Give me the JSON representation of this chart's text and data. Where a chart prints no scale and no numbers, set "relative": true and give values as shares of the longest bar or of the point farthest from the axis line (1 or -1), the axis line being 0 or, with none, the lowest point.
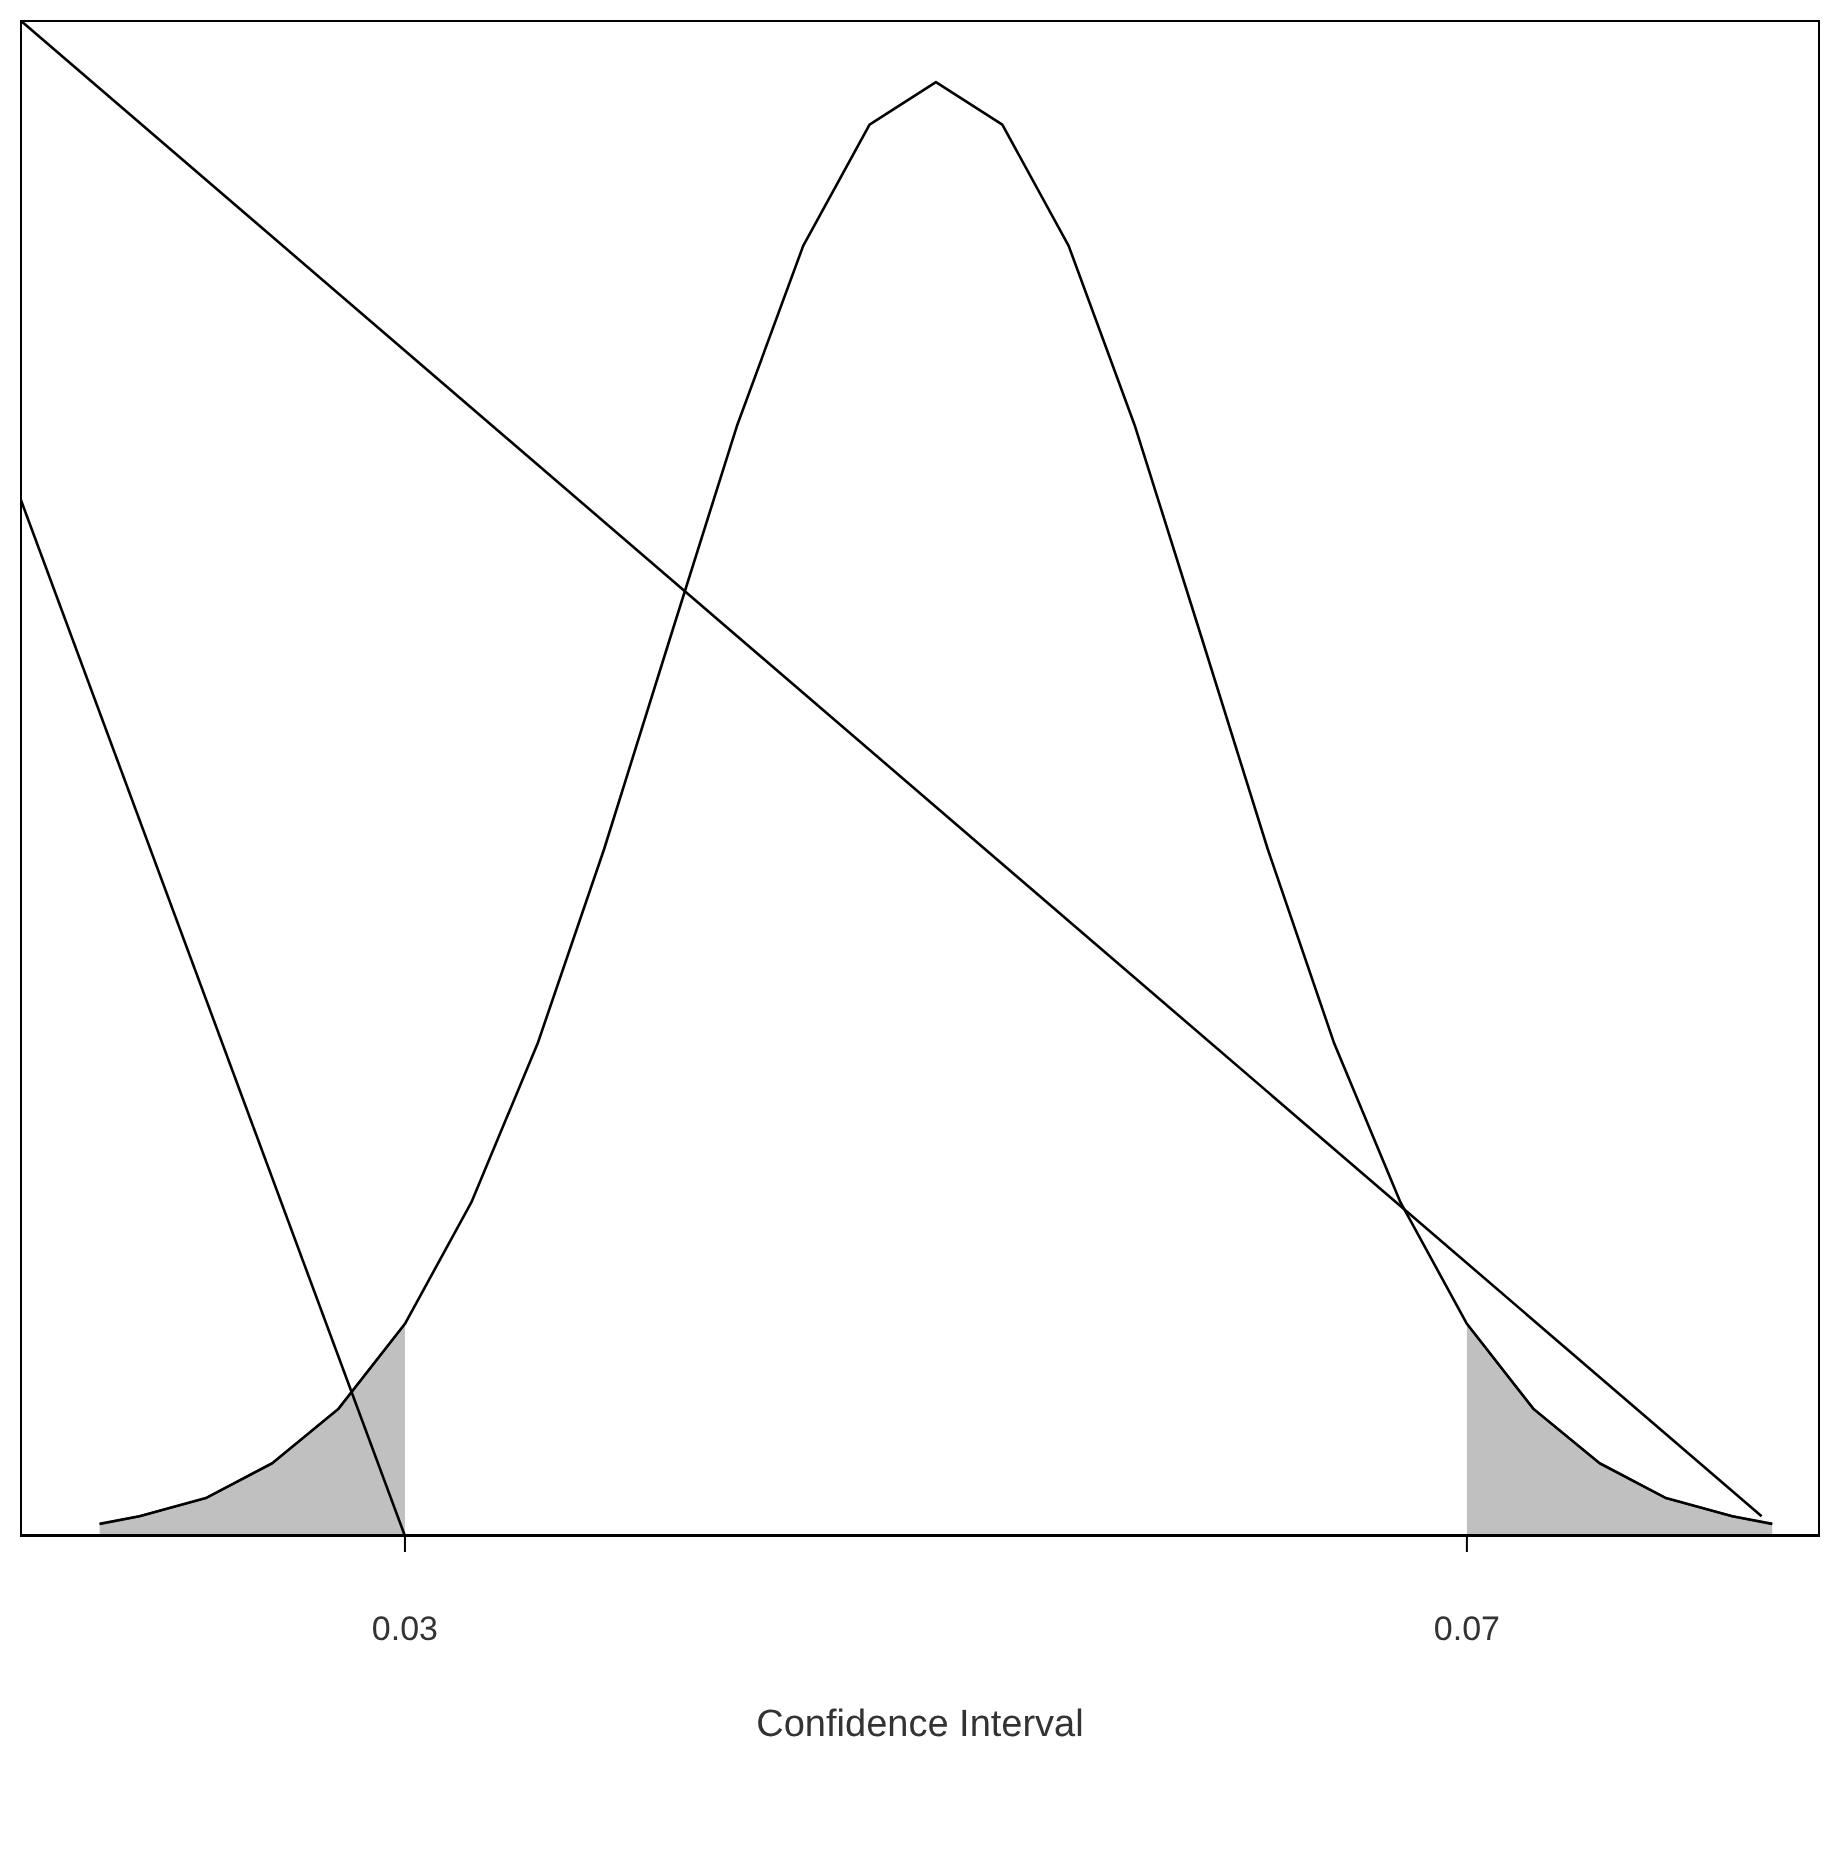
{
  "chart_data": {
    "type": "line",
    "relative": true,
    "xlabel": "Confidence Interval",
    "xlim": [
      0.0155,
      0.0833
    ],
    "xticks": [
      0.03,
      0.07
    ],
    "grid": false,
    "legend": false,
    "marker": "none",
    "line_style": "solid",
    "series": [
      {
        "type": "area",
        "color": "#c0c0c0",
        "x": [
          0.0185,
          0.02,
          0.0225,
          0.025,
          0.0275,
          0.03
        ],
        "values": [
          0.008,
          0.013,
          0.025,
          0.048,
          0.084,
          0.14
        ]
      },
      {
        "type": "area",
        "color": "#c0c0c0",
        "x": [
          0.07,
          0.0725,
          0.075,
          0.0775,
          0.08,
          0.0815
        ],
        "values": [
          0.14,
          0.084,
          0.048,
          0.025,
          0.013,
          0.008
        ]
      },
      {
        "color": "#000000",
        "x": [
          0.0185,
          0.02,
          0.0225,
          0.025,
          0.0275,
          0.03,
          0.0325,
          0.035,
          0.0375,
          0.04,
          0.0425,
          0.045,
          0.0475,
          0.05,
          0.0525,
          0.055,
          0.0575,
          0.06,
          0.0625,
          0.065,
          0.0675,
          0.07,
          0.0725,
          0.075,
          0.0775,
          0.08,
          0.0815
        ],
        "values": [
          0.008,
          0.013,
          0.025,
          0.048,
          0.084,
          0.14,
          0.22,
          0.325,
          0.453,
          0.593,
          0.732,
          0.851,
          0.931,
          0.959,
          0.931,
          0.851,
          0.732,
          0.593,
          0.453,
          0.325,
          0.22,
          0.14,
          0.084,
          0.048,
          0.025,
          0.013,
          0.008
        ]
      },
      {
        "color": "#000000",
        "x": [
          0.0155,
          0.0811
        ],
        "values": [
          1,
          0.013
        ]
      },
      {
        "color": "#000000",
        "x": [
          0.0155,
          0.03
        ],
        "values": [
          0.685,
          0
        ]
      }
    ]
  }
}
